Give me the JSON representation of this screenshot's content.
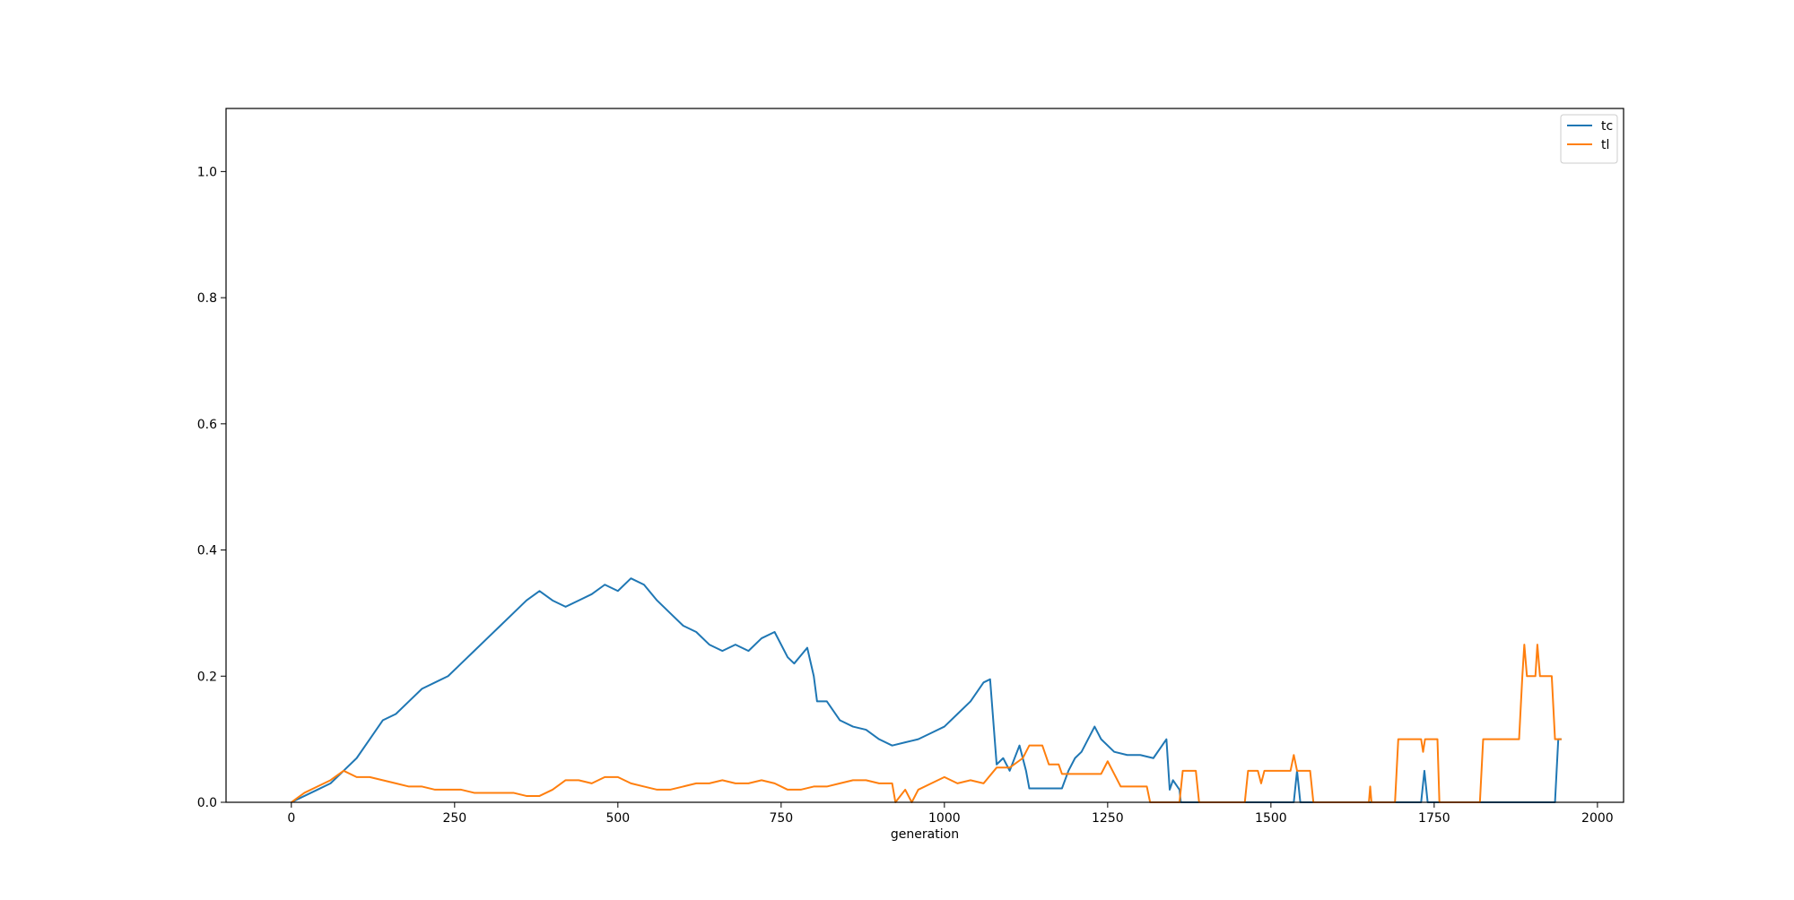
{
  "chart_data": {
    "type": "line",
    "title": "",
    "xlabel": "generation",
    "ylabel": "",
    "xlim": [
      -100,
      2040
    ],
    "ylim": [
      0,
      1.1
    ],
    "x_ticks": [
      0,
      250,
      500,
      750,
      1000,
      1250,
      1500,
      1750,
      2000
    ],
    "x_tick_labels": [
      "0",
      "250",
      "500",
      "750",
      "1000",
      "1250",
      "1500",
      "1750",
      "2000"
    ],
    "y_ticks": [
      0.0,
      0.2,
      0.4,
      0.6,
      0.8,
      1.0
    ],
    "y_tick_labels": [
      "0.0",
      "0.2",
      "0.4",
      "0.6",
      "0.8",
      "1.0"
    ],
    "grid": false,
    "legend": {
      "placement": "top-right"
    },
    "series": [
      {
        "name": "tc",
        "color": "#1f77b4",
        "points": [
          [
            0,
            0.0
          ],
          [
            20,
            0.01
          ],
          [
            40,
            0.02
          ],
          [
            60,
            0.03
          ],
          [
            80,
            0.05
          ],
          [
            100,
            0.07
          ],
          [
            120,
            0.1
          ],
          [
            140,
            0.13
          ],
          [
            160,
            0.14
          ],
          [
            180,
            0.16
          ],
          [
            200,
            0.18
          ],
          [
            220,
            0.19
          ],
          [
            240,
            0.2
          ],
          [
            260,
            0.22
          ],
          [
            280,
            0.24
          ],
          [
            300,
            0.26
          ],
          [
            320,
            0.28
          ],
          [
            340,
            0.3
          ],
          [
            360,
            0.32
          ],
          [
            380,
            0.335
          ],
          [
            400,
            0.32
          ],
          [
            420,
            0.31
          ],
          [
            440,
            0.32
          ],
          [
            460,
            0.33
          ],
          [
            480,
            0.345
          ],
          [
            500,
            0.335
          ],
          [
            520,
            0.355
          ],
          [
            540,
            0.345
          ],
          [
            560,
            0.32
          ],
          [
            580,
            0.3
          ],
          [
            600,
            0.28
          ],
          [
            620,
            0.27
          ],
          [
            640,
            0.25
          ],
          [
            660,
            0.24
          ],
          [
            680,
            0.25
          ],
          [
            700,
            0.24
          ],
          [
            720,
            0.26
          ],
          [
            740,
            0.27
          ],
          [
            760,
            0.23
          ],
          [
            770,
            0.22
          ],
          [
            790,
            0.245
          ],
          [
            800,
            0.2
          ],
          [
            805,
            0.16
          ],
          [
            820,
            0.16
          ],
          [
            840,
            0.13
          ],
          [
            860,
            0.12
          ],
          [
            880,
            0.115
          ],
          [
            900,
            0.1
          ],
          [
            920,
            0.09
          ],
          [
            940,
            0.095
          ],
          [
            960,
            0.1
          ],
          [
            980,
            0.11
          ],
          [
            1000,
            0.12
          ],
          [
            1020,
            0.14
          ],
          [
            1040,
            0.16
          ],
          [
            1060,
            0.19
          ],
          [
            1070,
            0.195
          ],
          [
            1080,
            0.06
          ],
          [
            1090,
            0.07
          ],
          [
            1100,
            0.05
          ],
          [
            1115,
            0.09
          ],
          [
            1125,
            0.05
          ],
          [
            1130,
            0.022
          ],
          [
            1180,
            0.022
          ],
          [
            1190,
            0.05
          ],
          [
            1200,
            0.07
          ],
          [
            1210,
            0.08
          ],
          [
            1230,
            0.12
          ],
          [
            1240,
            0.1
          ],
          [
            1260,
            0.08
          ],
          [
            1280,
            0.075
          ],
          [
            1300,
            0.075
          ],
          [
            1320,
            0.07
          ],
          [
            1340,
            0.1
          ],
          [
            1345,
            0.02
          ],
          [
            1350,
            0.035
          ],
          [
            1360,
            0.02
          ],
          [
            1362,
            0.0
          ],
          [
            1535,
            0.0
          ],
          [
            1540,
            0.05
          ],
          [
            1545,
            0.0
          ],
          [
            1730,
            0.0
          ],
          [
            1735,
            0.05
          ],
          [
            1740,
            0.0
          ],
          [
            1935,
            0.0
          ],
          [
            1940,
            0.1
          ],
          [
            1945,
            0.1
          ]
        ]
      },
      {
        "name": "tl",
        "color": "#ff7f0e",
        "points": [
          [
            0,
            0.0
          ],
          [
            20,
            0.015
          ],
          [
            40,
            0.025
          ],
          [
            60,
            0.035
          ],
          [
            80,
            0.05
          ],
          [
            100,
            0.04
          ],
          [
            120,
            0.04
          ],
          [
            140,
            0.035
          ],
          [
            160,
            0.03
          ],
          [
            180,
            0.025
          ],
          [
            200,
            0.025
          ],
          [
            220,
            0.02
          ],
          [
            240,
            0.02
          ],
          [
            260,
            0.02
          ],
          [
            280,
            0.015
          ],
          [
            300,
            0.015
          ],
          [
            320,
            0.015
          ],
          [
            340,
            0.015
          ],
          [
            360,
            0.01
          ],
          [
            380,
            0.01
          ],
          [
            400,
            0.02
          ],
          [
            420,
            0.035
          ],
          [
            440,
            0.035
          ],
          [
            460,
            0.03
          ],
          [
            480,
            0.04
          ],
          [
            500,
            0.04
          ],
          [
            520,
            0.03
          ],
          [
            540,
            0.025
          ],
          [
            560,
            0.02
          ],
          [
            580,
            0.02
          ],
          [
            600,
            0.025
          ],
          [
            620,
            0.03
          ],
          [
            640,
            0.03
          ],
          [
            660,
            0.035
          ],
          [
            680,
            0.03
          ],
          [
            700,
            0.03
          ],
          [
            720,
            0.035
          ],
          [
            740,
            0.03
          ],
          [
            760,
            0.02
          ],
          [
            780,
            0.02
          ],
          [
            800,
            0.025
          ],
          [
            820,
            0.025
          ],
          [
            840,
            0.03
          ],
          [
            860,
            0.035
          ],
          [
            880,
            0.035
          ],
          [
            900,
            0.03
          ],
          [
            920,
            0.03
          ],
          [
            925,
            0.0
          ],
          [
            940,
            0.02
          ],
          [
            950,
            0.0
          ],
          [
            960,
            0.02
          ],
          [
            980,
            0.03
          ],
          [
            1000,
            0.04
          ],
          [
            1020,
            0.03
          ],
          [
            1040,
            0.035
          ],
          [
            1060,
            0.03
          ],
          [
            1080,
            0.055
          ],
          [
            1100,
            0.055
          ],
          [
            1120,
            0.07
          ],
          [
            1130,
            0.09
          ],
          [
            1150,
            0.09
          ],
          [
            1160,
            0.06
          ],
          [
            1175,
            0.06
          ],
          [
            1180,
            0.045
          ],
          [
            1200,
            0.045
          ],
          [
            1240,
            0.045
          ],
          [
            1250,
            0.065
          ],
          [
            1260,
            0.045
          ],
          [
            1270,
            0.025
          ],
          [
            1290,
            0.025
          ],
          [
            1310,
            0.025
          ],
          [
            1315,
            0.0
          ],
          [
            1360,
            0.0
          ],
          [
            1365,
            0.05
          ],
          [
            1385,
            0.05
          ],
          [
            1390,
            0.0
          ],
          [
            1460,
            0.0
          ],
          [
            1465,
            0.05
          ],
          [
            1480,
            0.05
          ],
          [
            1485,
            0.03
          ],
          [
            1490,
            0.05
          ],
          [
            1530,
            0.05
          ],
          [
            1535,
            0.075
          ],
          [
            1540,
            0.05
          ],
          [
            1560,
            0.05
          ],
          [
            1565,
            0.0
          ],
          [
            1650,
            0.0
          ],
          [
            1652,
            0.025
          ],
          [
            1654,
            0.0
          ],
          [
            1690,
            0.0
          ],
          [
            1695,
            0.1
          ],
          [
            1730,
            0.1
          ],
          [
            1733,
            0.08
          ],
          [
            1736,
            0.1
          ],
          [
            1755,
            0.1
          ],
          [
            1758,
            0.0
          ],
          [
            1820,
            0.0
          ],
          [
            1825,
            0.1
          ],
          [
            1880,
            0.1
          ],
          [
            1885,
            0.2
          ],
          [
            1888,
            0.25
          ],
          [
            1892,
            0.2
          ],
          [
            1905,
            0.2
          ],
          [
            1908,
            0.25
          ],
          [
            1912,
            0.2
          ],
          [
            1930,
            0.2
          ],
          [
            1935,
            0.1
          ],
          [
            1945,
            0.1
          ]
        ]
      }
    ]
  }
}
